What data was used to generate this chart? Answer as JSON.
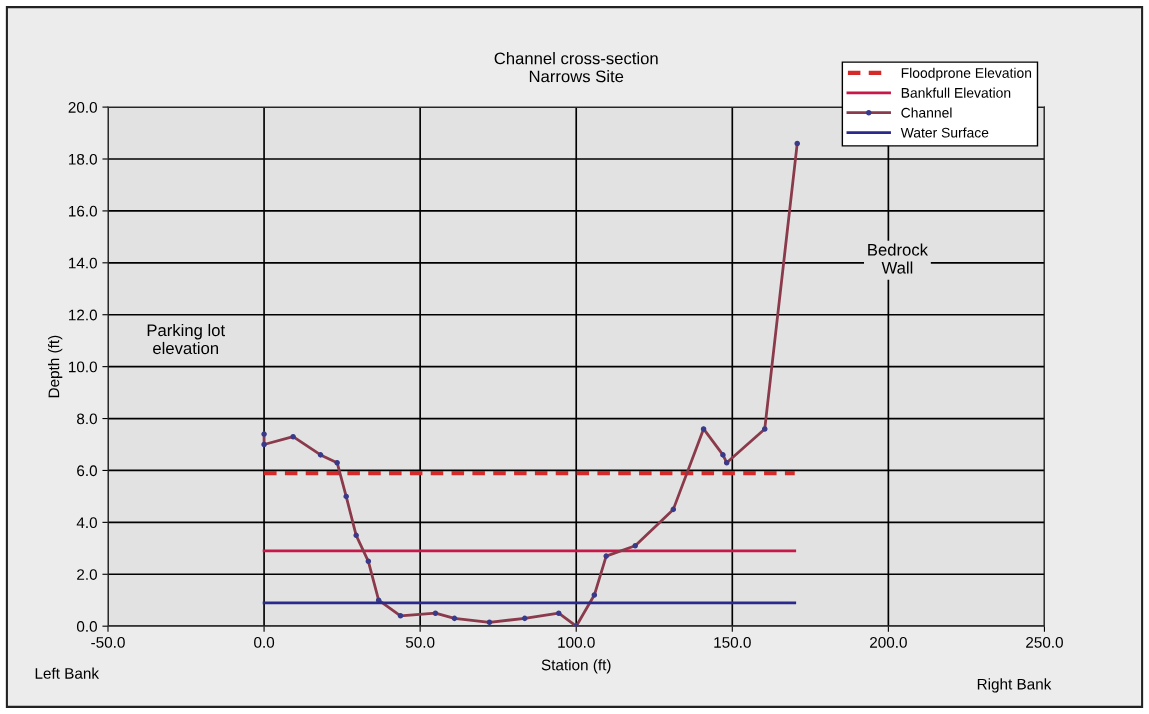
{
  "chart_data": {
    "type": "line",
    "title": "Channel cross-section\nNarrows Site",
    "xlabel": "Station (ft)",
    "ylabel": "Depth (ft)",
    "xlim": [
      -50,
      250
    ],
    "xticks": [
      {
        "value": -50,
        "label": "-50.0"
      },
      {
        "value": 0,
        "label": "0.0"
      },
      {
        "value": 50,
        "label": "50.0"
      },
      {
        "value": 100,
        "label": "100.0"
      },
      {
        "value": 150,
        "label": "150.0"
      },
      {
        "value": 200,
        "label": "200.0"
      },
      {
        "value": 250,
        "label": "250.0"
      }
    ],
    "ylim": [
      0,
      20
    ],
    "yticks": [
      {
        "value": 0,
        "label": "0.0"
      },
      {
        "value": 2,
        "label": "2.0"
      },
      {
        "value": 4,
        "label": "4.0"
      },
      {
        "value": 6,
        "label": "6.0"
      },
      {
        "value": 8,
        "label": "8.0"
      },
      {
        "value": 10,
        "label": "10.0"
      },
      {
        "value": 12,
        "label": "12.0"
      },
      {
        "value": 14,
        "label": "14.0"
      },
      {
        "value": 16,
        "label": "16.0"
      },
      {
        "value": 18,
        "label": "18.0"
      },
      {
        "value": 20,
        "label": "20.0"
      }
    ],
    "grid": true,
    "legend": "top right",
    "series": [
      {
        "name": "Floodprone Elevation",
        "color": "#d42a2a",
        "line_style": "dashed",
        "marker": "none",
        "x": [
          0,
          170
        ],
        "values": [
          5.9,
          5.9
        ]
      },
      {
        "name": "Bankfull Elevation",
        "color": "#c8184a",
        "line_style": "solid",
        "marker": "none",
        "x": [
          0,
          170
        ],
        "values": [
          2.9,
          2.9
        ]
      },
      {
        "name": "Channel",
        "color": "#8a3a4a",
        "line_style": "solid",
        "marker": "circle",
        "x": [
          0,
          0,
          9.3,
          18.1,
          23.4,
          26.3,
          29.5,
          33.4,
          36.7,
          43.7,
          54.9,
          61,
          72.2,
          83.5,
          94.4,
          100,
          105.8,
          109.6,
          118.9,
          131.1,
          140.8,
          147,
          148.2,
          160.4,
          170.8
        ],
        "values": [
          7.4,
          7.0,
          7.3,
          6.6,
          6.3,
          5.0,
          3.5,
          2.5,
          1.0,
          0.4,
          0.5,
          0.3,
          0.15,
          0.3,
          0.5,
          0.0,
          1.2,
          2.7,
          3.1,
          4.5,
          7.6,
          6.6,
          6.3,
          7.6,
          18.6
        ]
      },
      {
        "name": "Water Surface",
        "color": "#2a2a8c",
        "line_style": "solid",
        "marker": "none",
        "x": [
          0,
          170
        ],
        "values": [
          0.9,
          0.9
        ]
      }
    ],
    "annotations": [
      "Parking lot\nelevation",
      "Bedrock\nWall",
      "Left Bank",
      "Right Bank"
    ]
  }
}
